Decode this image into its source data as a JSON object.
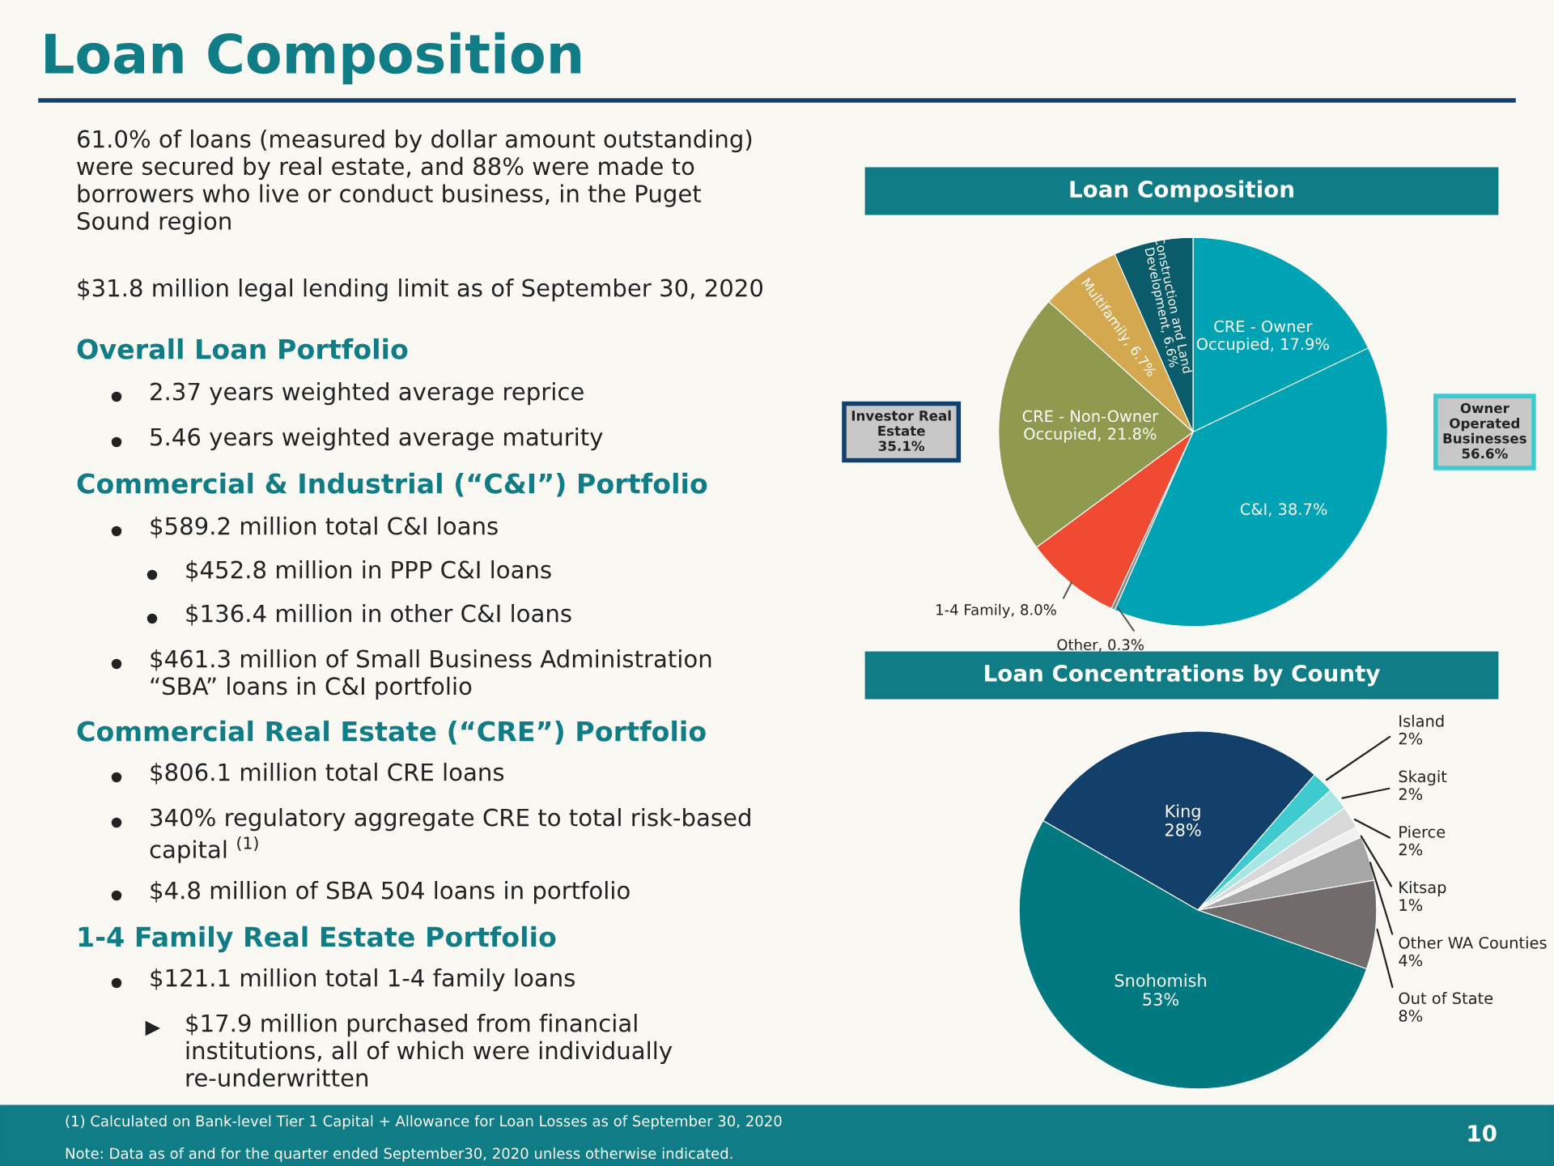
{
  "chart_data": [
    {
      "type": "other",
      "title": "Loan Composition",
      "annotations": [
        "61.0% of loans (measured by dollar amount outstanding)\nwere secured by real estate, and 88% were made to\nborrowers who live or conduct business, in the Puget\nSound region",
        "$31.8 million legal lending limit as of September 30, 2020",
        "Overall Loan Portfolio",
        "2.37 years weighted average reprice",
        "5.46 years weighted average maturity",
        "Commercial & Industrial (“C&I”) Portfolio",
        "$589.2 million total C&I loans",
        "$452.8 million in PPP C&I loans",
        "$136.4 million in other C&I loans",
        "$461.3 million of Small Business Administration\n“SBA” loans in C&I portfolio",
        "Commercial Real Estate (“CRE”) Portfolio",
        "$806.1 million total CRE loans",
        "340% regulatory aggregate CRE to total risk-based\ncapital $^{(1)}$",
        "$4.8 million of SBA 504 loans in portfolio",
        "1-4 Family Real Estate Portfolio",
        "$121.1 million total 1-4 family loans",
        "$17.9 million purchased from financial\ninstitutions, all of which were individually\nre-underwritten",
        "(1) Calculated on Bank-level Tier 1 Capital + Allowance for Loan Losses as of September 30, 2020",
        "Note: Data as of and for the quarter ended September30, 2020 unless otherwise indicated.",
        "10"
      ]
    },
    {
      "type": "pie",
      "title": "Loan Composition",
      "categories": [
        "CRE - Owner Occupied",
        "C&I",
        "Other",
        "1-4 Family",
        "CRE - Non-Owner Occupied",
        "Multifamily",
        "Construction and Land Development"
      ],
      "values": [
        17.9,
        38.7,
        0.3,
        8.0,
        21.8,
        6.7,
        6.6
      ],
      "value_labels": [
        "17.9%",
        "38.7%",
        "0.3%",
        "8.0%",
        "21.8%",
        "6.7%",
        "6.6%"
      ],
      "colors": [
        "#00a3b4",
        "#00a3b4",
        "#8a8a8a",
        "#f04a32",
        "#8f9a4e",
        "#d4a84e",
        "#0b5c6a"
      ],
      "annotations": [
        "Investor Real\nEstate\n35.1%",
        "Owner\nOperated\nBusinesses\n56.6%"
      ]
    },
    {
      "type": "pie",
      "title": "Loan Concentrations by County",
      "categories": [
        "King",
        "Island",
        "Skagit",
        "Pierce",
        "Kitsap",
        "Other WA Counties",
        "Out of State",
        "Snohomish"
      ],
      "values": [
        28,
        2,
        2,
        2,
        1,
        4,
        8,
        53
      ],
      "value_labels": [
        "28%",
        "2%",
        "2%",
        "2%",
        "1%",
        "4%",
        "8%",
        "53%"
      ],
      "colors": [
        "#12406b",
        "#3dcbd0",
        "#a8e6e6",
        "#d9d9d9",
        "#f0f0f0",
        "#a6a6a6",
        "#716b6b",
        "#007a80"
      ]
    }
  ]
}
